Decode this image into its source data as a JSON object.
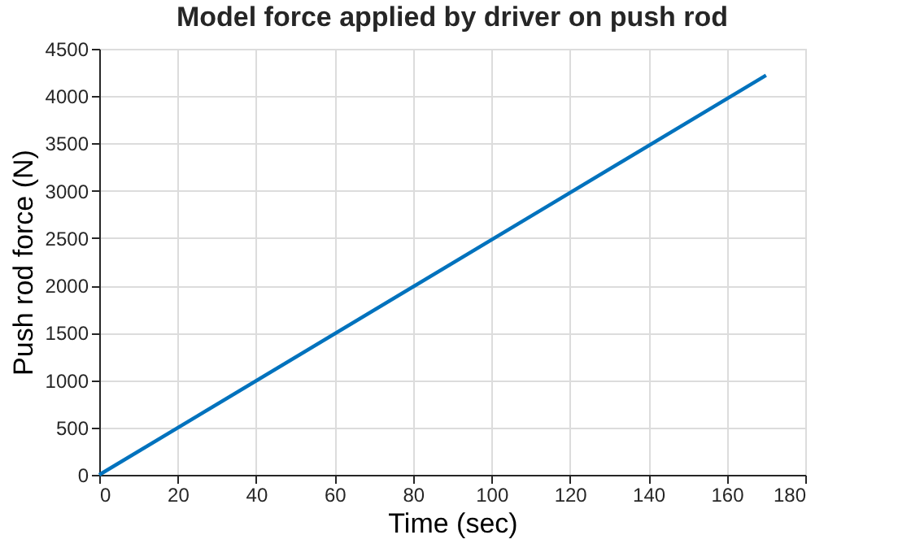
{
  "chart_data": {
    "type": "line",
    "title": "Model force applied by driver on push rod",
    "xlabel": "Time (sec)",
    "ylabel": "Push rod force (N)",
    "x": [
      0,
      170
    ],
    "series": [
      {
        "color": "#0072bd",
        "values": [
          0,
          4220
        ]
      }
    ],
    "xlim": [
      0,
      180
    ],
    "xticks": [
      0,
      20,
      40,
      60,
      80,
      100,
      120,
      140,
      160,
      180
    ],
    "ylim": [
      0,
      4500
    ],
    "yticks": [
      0,
      500,
      1000,
      1500,
      2000,
      2500,
      3000,
      3500,
      4000,
      4500
    ],
    "grid": true,
    "legend": false,
    "marker": "none",
    "line_style": "solid"
  }
}
